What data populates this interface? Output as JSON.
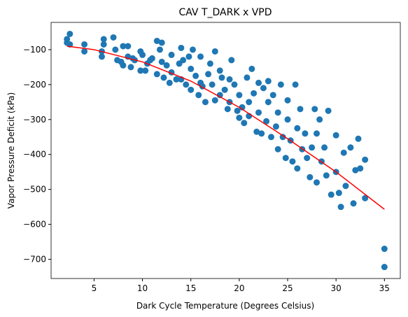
{
  "chart_data": {
    "type": "scatter",
    "title": "CAV T_DARK x VPD",
    "xlabel": "Dark Cycle Temperature (Degrees Celsius)",
    "ylabel": "Vapor Pressure Deficit (kPa)",
    "xlim": [
      0.56,
      36.64
    ],
    "ylim": [
      -755,
      -22
    ],
    "xticks": [
      5,
      10,
      15,
      20,
      25,
      30,
      35
    ],
    "yticks": [
      {
        "value": -100,
        "label": "−100"
      },
      {
        "value": -200,
        "label": "−200"
      },
      {
        "value": -300,
        "label": "−300"
      },
      {
        "value": -400,
        "label": "−400"
      },
      {
        "value": -500,
        "label": "−500"
      },
      {
        "value": -600,
        "label": "−600"
      },
      {
        "value": -700,
        "label": "−700"
      }
    ],
    "points": {
      "color": "#1f77b4",
      "x": [
        2.2,
        2.2,
        2.5,
        2.5,
        4,
        4,
        5.8,
        5.8,
        6,
        6,
        7,
        7.2,
        7.4,
        7.8,
        8,
        8,
        8.5,
        8.5,
        8.8,
        9,
        9.2,
        9.8,
        9.8,
        10,
        10.3,
        10.5,
        10.8,
        11,
        11.5,
        11.5,
        11.8,
        12,
        12,
        12.2,
        12.5,
        12.8,
        13,
        13,
        13.5,
        13.8,
        14,
        14,
        14.2,
        14.5,
        14.8,
        15,
        15,
        15.2,
        15.5,
        15.8,
        16,
        16,
        16.2,
        16.5,
        16.8,
        17,
        17.2,
        17.5,
        17.5,
        18,
        18,
        18.2,
        18.5,
        18.8,
        19,
        19,
        19.2,
        19.5,
        19.8,
        20,
        20,
        20.3,
        20.5,
        20.8,
        21,
        21,
        21.3,
        21.5,
        21.8,
        22,
        22,
        22.3,
        22.5,
        22.8,
        23,
        23,
        23.3,
        23.5,
        23.8,
        24,
        24,
        24.3,
        24.5,
        24.8,
        25,
        25,
        25.3,
        25.5,
        25.8,
        26,
        26,
        26.3,
        26.5,
        26.8,
        27,
        27.3,
        27.5,
        27.8,
        28,
        28,
        28.3,
        28.5,
        28.8,
        29,
        29.2,
        29.5,
        30,
        30,
        30.3,
        30.5,
        30.8,
        31,
        31.5,
        31.8,
        32,
        32.3,
        32.5,
        33,
        33,
        35,
        35
      ],
      "y": [
        -70,
        -80,
        -55,
        -85,
        -85,
        -105,
        -105,
        -120,
        -70,
        -85,
        -65,
        -100,
        -130,
        -135,
        -90,
        -145,
        -90,
        -120,
        -150,
        -125,
        -130,
        -105,
        -160,
        -115,
        -160,
        -140,
        -130,
        -125,
        -75,
        -170,
        -100,
        -80,
        -135,
        -180,
        -145,
        -195,
        -115,
        -165,
        -185,
        -140,
        -95,
        -185,
        -130,
        -200,
        -120,
        -155,
        -215,
        -100,
        -175,
        -230,
        -120,
        -195,
        -205,
        -250,
        -170,
        -140,
        -200,
        -105,
        -245,
        -160,
        -230,
        -180,
        -215,
        -270,
        -185,
        -250,
        -130,
        -200,
        -275,
        -230,
        -295,
        -265,
        -310,
        -180,
        -250,
        -290,
        -155,
        -225,
        -335,
        -195,
        -280,
        -340,
        -210,
        -305,
        -190,
        -250,
        -350,
        -230,
        -320,
        -385,
        -280,
        -200,
        -350,
        -410,
        -245,
        -300,
        -360,
        -420,
        -200,
        -325,
        -440,
        -270,
        -385,
        -340,
        -410,
        -465,
        -380,
        -270,
        -480,
        -340,
        -300,
        -420,
        -380,
        -460,
        -275,
        -515,
        -345,
        -450,
        -510,
        -550,
        -395,
        -490,
        -380,
        -540,
        -445,
        -355,
        -440,
        -415,
        -525,
        -670,
        -722
      ]
    },
    "fit": {
      "type": "line",
      "color": "#ff0000",
      "x": [
        2.2,
        5,
        10,
        15,
        20,
        25,
        30,
        35
      ],
      "y": [
        -90,
        -100,
        -135,
        -190,
        -265,
        -355,
        -450,
        -557
      ]
    }
  }
}
